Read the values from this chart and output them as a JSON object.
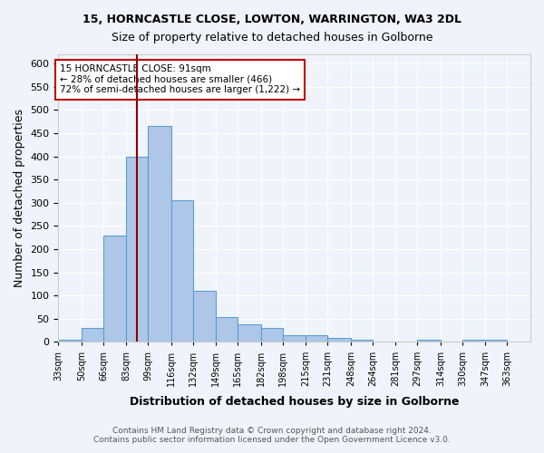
{
  "title1": "15, HORNCASTLE CLOSE, LOWTON, WARRINGTON, WA3 2DL",
  "title2": "Size of property relative to detached houses in Golborne",
  "xlabel": "Distribution of detached houses by size in Golborne",
  "ylabel": "Number of detached properties",
  "footer1": "Contains HM Land Registry data © Crown copyright and database right 2024.",
  "footer2": "Contains public sector information licensed under the Open Government Licence v3.0.",
  "annotation_line1": "15 HORNCASTLE CLOSE: 91sqm",
  "annotation_line2": "← 28% of detached houses are smaller (466)",
  "annotation_line3": "72% of semi-detached houses are larger (1,222) →",
  "bar_color": "#aec6e8",
  "bar_edge_color": "#5a9fd4",
  "bar_heights": [
    5,
    30,
    230,
    400,
    465,
    305,
    110,
    53,
    38,
    30,
    15,
    15,
    8,
    5,
    0,
    0,
    5,
    0,
    5,
    5
  ],
  "tick_labels": [
    "33sqm",
    "50sqm",
    "66sqm",
    "83sqm",
    "99sqm",
    "116sqm",
    "132sqm",
    "149sqm",
    "165sqm",
    "182sqm",
    "198sqm",
    "215sqm",
    "231sqm",
    "248sqm",
    "264sqm",
    "281sqm",
    "297sqm",
    "314sqm",
    "330sqm",
    "347sqm",
    "363sqm"
  ],
  "bin_edges": [
    33,
    50,
    66,
    83,
    99,
    116,
    132,
    149,
    165,
    182,
    198,
    215,
    231,
    248,
    264,
    281,
    297,
    314,
    330,
    347,
    363,
    380
  ],
  "vline_x": 91,
  "vline_color": "#8b0000",
  "ylim": [
    0,
    620
  ],
  "yticks": [
    0,
    50,
    100,
    150,
    200,
    250,
    300,
    350,
    400,
    450,
    500,
    550,
    600
  ],
  "bg_color": "#f0f4fa",
  "grid_color": "#ffffff",
  "annotation_box_color": "#ffffff",
  "annotation_border_color": "#c00000"
}
